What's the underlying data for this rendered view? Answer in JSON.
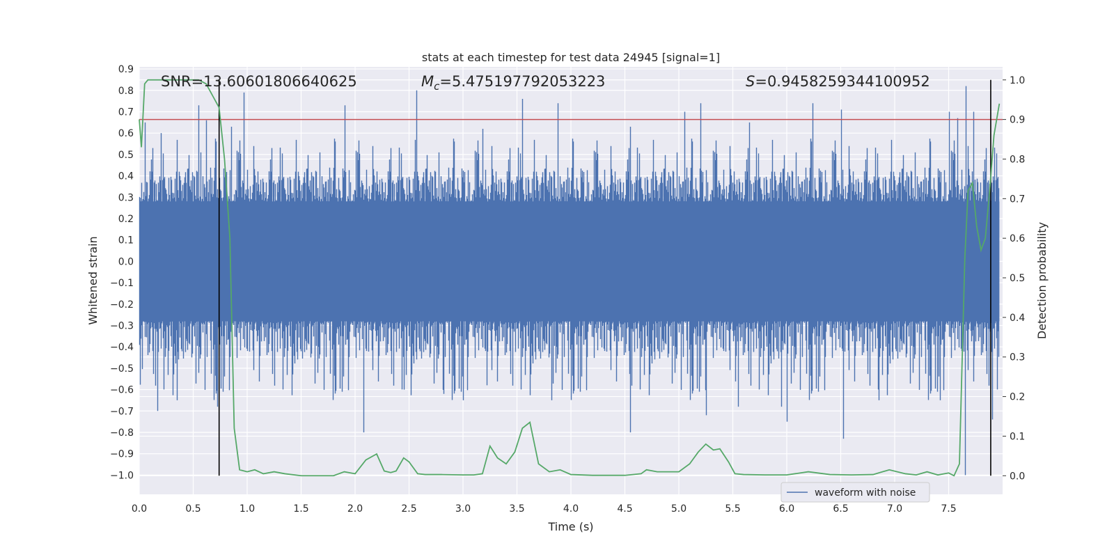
{
  "chart_data": {
    "type": "line",
    "title": "stats at each timestep for test data 24945 [signal=1]",
    "xlabel": "Time (s)",
    "ylabel": "Whitened strain",
    "y2label": "Detection probability",
    "xlim": [
      0.0,
      8.0
    ],
    "ylim": [
      -1.09,
      0.91
    ],
    "y2lim": [
      -0.047,
      1.033
    ],
    "xticks": [
      0.0,
      0.5,
      1.0,
      1.5,
      2.0,
      2.5,
      3.0,
      3.5,
      4.0,
      4.5,
      5.0,
      5.5,
      6.0,
      6.5,
      7.0,
      7.5
    ],
    "xtick_labels": [
      "0.0",
      "0.5",
      "1.0",
      "1.5",
      "2.0",
      "2.5",
      "3.0",
      "3.5",
      "4.0",
      "4.5",
      "5.0",
      "5.5",
      "6.0",
      "6.5",
      "7.0",
      "7.5"
    ],
    "yticks": [
      0.9,
      0.8,
      0.7,
      0.6,
      0.5,
      0.4,
      0.3,
      0.2,
      0.1,
      0.0,
      -0.1,
      -0.2,
      -0.3,
      -0.4,
      -0.5,
      -0.6,
      -0.7,
      -0.8,
      -0.9,
      -1.0
    ],
    "ytick_labels": [
      "0.9",
      "0.8",
      "0.7",
      "0.6",
      "0.5",
      "0.4",
      "0.3",
      "0.2",
      "0.1",
      "0.0",
      "−0.1",
      "−0.2",
      "−0.3",
      "−0.4",
      "−0.5",
      "−0.6",
      "−0.7",
      "−0.8",
      "−0.9",
      "−1.0"
    ],
    "y2ticks": [
      1.0,
      0.9,
      0.8,
      0.7,
      0.6,
      0.5,
      0.4,
      0.3,
      0.2,
      0.1,
      0.0
    ],
    "y2tick_labels": [
      "1.0",
      "0.9",
      "0.8",
      "0.7",
      "0.6",
      "0.5",
      "0.4",
      "0.3",
      "0.2",
      "0.1",
      "0.0"
    ],
    "annotations": {
      "snr": "SNR=13.60601806640625",
      "mc_prefix": "M",
      "mc_sub": "c",
      "mc_value": "=5.475197792053223",
      "s_prefix": "S",
      "s_value": "=0.9458259344100952"
    },
    "threshold": 0.9,
    "vlines": [
      0.74,
      7.89
    ],
    "legend": {
      "label": "waveform with noise",
      "location": "lower-right"
    },
    "series": [
      {
        "name": "waveform with noise",
        "color": "#4c72b0",
        "description": "whitened strain noise band, core amplitude ~+/-0.28 with spikes up to ~0.8 and down to ~-1.0",
        "core_amplitude": 0.28,
        "peaks": [
          [
            0.05,
            0.65
          ],
          [
            0.2,
            0.6
          ],
          [
            0.55,
            0.73
          ],
          [
            0.62,
            0.66
          ],
          [
            0.85,
            0.63
          ],
          [
            0.97,
            0.79
          ],
          [
            1.9,
            0.73
          ],
          [
            2.57,
            0.8
          ],
          [
            3.18,
            0.62
          ],
          [
            3.55,
            0.76
          ],
          [
            3.88,
            0.74
          ],
          [
            4.55,
            0.63
          ],
          [
            5.05,
            0.7
          ],
          [
            5.2,
            0.74
          ],
          [
            5.65,
            0.65
          ],
          [
            6.24,
            0.74
          ],
          [
            6.5,
            0.71
          ],
          [
            7.5,
            0.7
          ],
          [
            7.58,
            0.67
          ],
          [
            7.66,
            0.82
          ],
          [
            7.73,
            0.7
          ]
        ],
        "troughs": [
          [
            0.17,
            -0.7
          ],
          [
            0.35,
            -0.65
          ],
          [
            0.72,
            -0.68
          ],
          [
            2.08,
            -0.8
          ],
          [
            2.45,
            -0.6
          ],
          [
            2.82,
            -0.62
          ],
          [
            3.0,
            -0.65
          ],
          [
            3.22,
            -0.58
          ],
          [
            3.82,
            -0.65
          ],
          [
            4.55,
            -0.8
          ],
          [
            5.25,
            -0.72
          ],
          [
            5.55,
            -0.68
          ],
          [
            5.95,
            -0.68
          ],
          [
            6.0,
            -0.75
          ],
          [
            6.52,
            -0.83
          ],
          [
            6.85,
            -0.65
          ],
          [
            7.42,
            -0.65
          ],
          [
            7.65,
            -1.0
          ],
          [
            7.9,
            -0.74
          ]
        ]
      },
      {
        "name": "detection probability",
        "axis": "right",
        "color": "#55a868",
        "x": [
          0.0,
          0.02,
          0.05,
          0.08,
          0.12,
          0.2,
          0.4,
          0.55,
          0.62,
          0.68,
          0.74,
          0.79,
          0.84,
          0.88,
          0.93,
          1.0,
          1.07,
          1.15,
          1.25,
          1.35,
          1.5,
          1.7,
          1.8,
          1.9,
          2.0,
          2.1,
          2.2,
          2.27,
          2.33,
          2.38,
          2.45,
          2.5,
          2.58,
          2.65,
          2.8,
          3.0,
          3.1,
          3.18,
          3.25,
          3.32,
          3.4,
          3.48,
          3.55,
          3.62,
          3.7,
          3.8,
          3.9,
          4.0,
          4.2,
          4.5,
          4.65,
          4.7,
          4.8,
          4.9,
          5.0,
          5.1,
          5.18,
          5.25,
          5.32,
          5.38,
          5.46,
          5.52,
          5.6,
          5.8,
          6.0,
          6.2,
          6.4,
          6.6,
          6.8,
          6.95,
          7.1,
          7.2,
          7.3,
          7.4,
          7.5,
          7.55,
          7.6,
          7.65,
          7.68,
          7.72,
          7.76,
          7.8,
          7.84,
          7.88,
          7.92,
          7.97
        ],
        "values": [
          0.9,
          0.83,
          0.99,
          1.0,
          1.0,
          1.0,
          1.0,
          1.0,
          0.99,
          0.96,
          0.93,
          0.8,
          0.6,
          0.12,
          0.015,
          0.01,
          0.015,
          0.005,
          0.01,
          0.005,
          0.0,
          0.0,
          0.0,
          0.01,
          0.005,
          0.04,
          0.055,
          0.012,
          0.008,
          0.012,
          0.045,
          0.035,
          0.005,
          0.003,
          0.003,
          0.002,
          0.002,
          0.005,
          0.075,
          0.045,
          0.03,
          0.06,
          0.12,
          0.135,
          0.03,
          0.01,
          0.015,
          0.003,
          0.001,
          0.001,
          0.005,
          0.015,
          0.01,
          0.01,
          0.01,
          0.03,
          0.06,
          0.08,
          0.065,
          0.068,
          0.035,
          0.005,
          0.003,
          0.002,
          0.002,
          0.01,
          0.003,
          0.002,
          0.003,
          0.015,
          0.005,
          0.002,
          0.01,
          0.002,
          0.007,
          0.0,
          0.03,
          0.55,
          0.72,
          0.74,
          0.63,
          0.57,
          0.6,
          0.72,
          0.86,
          0.94
        ]
      }
    ]
  }
}
